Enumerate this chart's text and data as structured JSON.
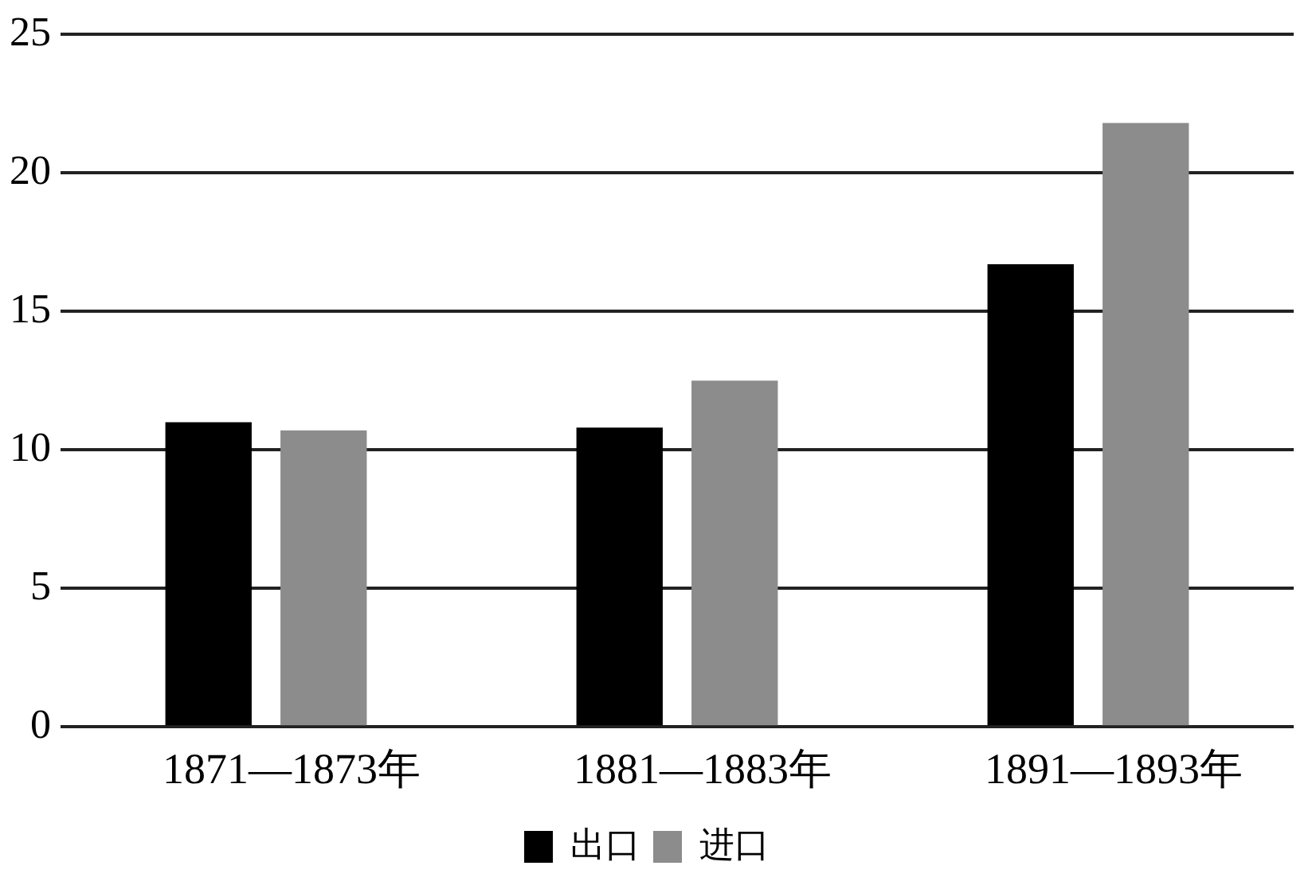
{
  "chart_data": {
    "type": "bar",
    "categories": [
      "1871—1873年",
      "1881—1883年",
      "1891—1893年"
    ],
    "series": [
      {
        "name": "出口",
        "color": "#000000",
        "values": [
          11.0,
          10.8,
          16.7
        ]
      },
      {
        "name": "进口",
        "color": "#8c8c8c",
        "values": [
          10.7,
          12.5,
          21.8
        ]
      }
    ],
    "ylim": [
      0,
      25
    ],
    "yticks": [
      0,
      5,
      10,
      15,
      20,
      25
    ],
    "grid": "y",
    "legend": "bottom"
  }
}
